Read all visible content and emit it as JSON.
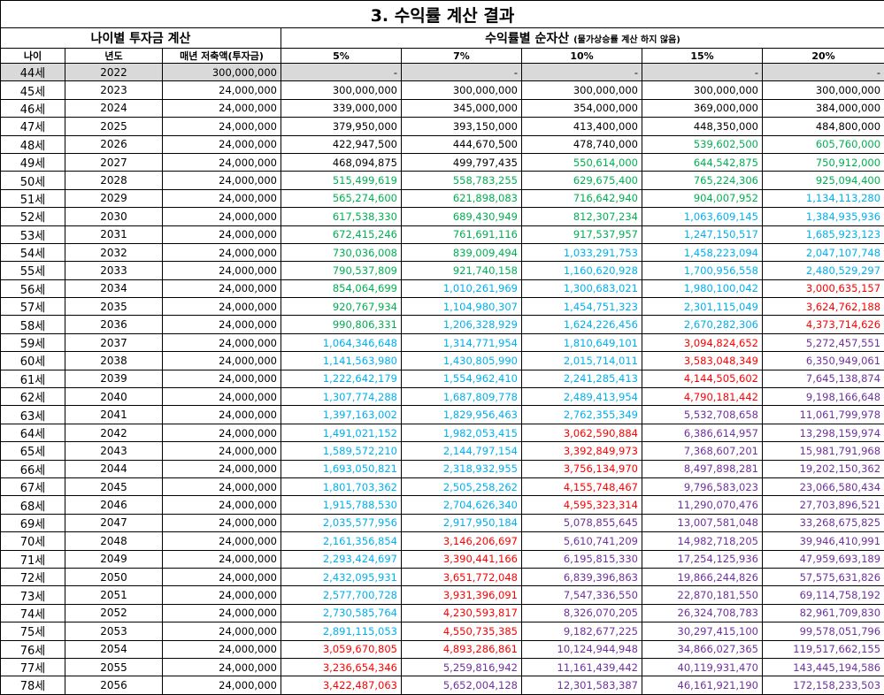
{
  "title": "3. 수익률 계산 결과",
  "left_header": "나이별 투자금 계산",
  "right_header": "수익률별 순자산",
  "right_header_note": "(물가상승률 계산 하지 않음)",
  "columns": [
    "나이",
    "년도",
    "매년 저축액(투자금)",
    "5%",
    "7%",
    "10%",
    "15%",
    "20%"
  ],
  "colors": {
    "black": "#000000",
    "green": "#00b050",
    "cyan": "#00b0f0",
    "red": "#ff0000",
    "purple": "#7030a0"
  },
  "rows": [
    {
      "age": "44세",
      "year": "2022",
      "save": "300,000,000",
      "vals": [
        "-",
        "-",
        "-",
        "-",
        "-"
      ],
      "colors": [
        "k",
        "k",
        "k",
        "k",
        "k"
      ]
    },
    {
      "age": "45세",
      "year": "2023",
      "save": "24,000,000",
      "vals": [
        "300,000,000",
        "300,000,000",
        "300,000,000",
        "300,000,000",
        "300,000,000"
      ],
      "colors": [
        "k",
        "k",
        "k",
        "k",
        "k"
      ]
    },
    {
      "age": "46세",
      "year": "2024",
      "save": "24,000,000",
      "vals": [
        "339,000,000",
        "345,000,000",
        "354,000,000",
        "369,000,000",
        "384,000,000"
      ],
      "colors": [
        "k",
        "k",
        "k",
        "k",
        "k"
      ]
    },
    {
      "age": "47세",
      "year": "2025",
      "save": "24,000,000",
      "vals": [
        "379,950,000",
        "393,150,000",
        "413,400,000",
        "448,350,000",
        "484,800,000"
      ],
      "colors": [
        "k",
        "k",
        "k",
        "k",
        "k"
      ]
    },
    {
      "age": "48세",
      "year": "2026",
      "save": "24,000,000",
      "vals": [
        "422,947,500",
        "444,670,500",
        "478,740,000",
        "539,602,500",
        "605,760,000"
      ],
      "colors": [
        "k",
        "k",
        "k",
        "g",
        "g"
      ]
    },
    {
      "age": "49세",
      "year": "2027",
      "save": "24,000,000",
      "vals": [
        "468,094,875",
        "499,797,435",
        "550,614,000",
        "644,542,875",
        "750,912,000"
      ],
      "colors": [
        "k",
        "k",
        "g",
        "g",
        "g"
      ]
    },
    {
      "age": "50세",
      "year": "2028",
      "save": "24,000,000",
      "vals": [
        "515,499,619",
        "558,783,255",
        "629,675,400",
        "765,224,306",
        "925,094,400"
      ],
      "colors": [
        "g",
        "g",
        "g",
        "g",
        "g"
      ]
    },
    {
      "age": "51세",
      "year": "2029",
      "save": "24,000,000",
      "vals": [
        "565,274,600",
        "621,898,083",
        "716,642,940",
        "904,007,952",
        "1,134,113,280"
      ],
      "colors": [
        "g",
        "g",
        "g",
        "g",
        "c"
      ]
    },
    {
      "age": "52세",
      "year": "2030",
      "save": "24,000,000",
      "vals": [
        "617,538,330",
        "689,430,949",
        "812,307,234",
        "1,063,609,145",
        "1,384,935,936"
      ],
      "colors": [
        "g",
        "g",
        "g",
        "c",
        "c"
      ]
    },
    {
      "age": "53세",
      "year": "2031",
      "save": "24,000,000",
      "vals": [
        "672,415,246",
        "761,691,116",
        "917,537,957",
        "1,247,150,517",
        "1,685,923,123"
      ],
      "colors": [
        "g",
        "g",
        "g",
        "c",
        "c"
      ]
    },
    {
      "age": "54세",
      "year": "2032",
      "save": "24,000,000",
      "vals": [
        "730,036,008",
        "839,009,494",
        "1,033,291,753",
        "1,458,223,094",
        "2,047,107,748"
      ],
      "colors": [
        "g",
        "g",
        "c",
        "c",
        "c"
      ]
    },
    {
      "age": "55세",
      "year": "2033",
      "save": "24,000,000",
      "vals": [
        "790,537,809",
        "921,740,158",
        "1,160,620,928",
        "1,700,956,558",
        "2,480,529,297"
      ],
      "colors": [
        "g",
        "g",
        "c",
        "c",
        "c"
      ]
    },
    {
      "age": "56세",
      "year": "2034",
      "save": "24,000,000",
      "vals": [
        "854,064,699",
        "1,010,261,969",
        "1,300,683,021",
        "1,980,100,042",
        "3,000,635,157"
      ],
      "colors": [
        "g",
        "c",
        "c",
        "c",
        "r"
      ]
    },
    {
      "age": "57세",
      "year": "2035",
      "save": "24,000,000",
      "vals": [
        "920,767,934",
        "1,104,980,307",
        "1,454,751,323",
        "2,301,115,049",
        "3,624,762,188"
      ],
      "colors": [
        "g",
        "c",
        "c",
        "c",
        "r"
      ]
    },
    {
      "age": "58세",
      "year": "2036",
      "save": "24,000,000",
      "vals": [
        "990,806,331",
        "1,206,328,929",
        "1,624,226,456",
        "2,670,282,306",
        "4,373,714,626"
      ],
      "colors": [
        "g",
        "c",
        "c",
        "c",
        "r"
      ]
    },
    {
      "age": "59세",
      "year": "2037",
      "save": "24,000,000",
      "vals": [
        "1,064,346,648",
        "1,314,771,954",
        "1,810,649,101",
        "3,094,824,652",
        "5,272,457,551"
      ],
      "colors": [
        "c",
        "c",
        "c",
        "r",
        "p"
      ]
    },
    {
      "age": "60세",
      "year": "2038",
      "save": "24,000,000",
      "vals": [
        "1,141,563,980",
        "1,430,805,990",
        "2,015,714,011",
        "3,583,048,349",
        "6,350,949,061"
      ],
      "colors": [
        "c",
        "c",
        "c",
        "r",
        "p"
      ]
    },
    {
      "age": "61세",
      "year": "2039",
      "save": "24,000,000",
      "vals": [
        "1,222,642,179",
        "1,554,962,410",
        "2,241,285,413",
        "4,144,505,602",
        "7,645,138,874"
      ],
      "colors": [
        "c",
        "c",
        "c",
        "r",
        "p"
      ]
    },
    {
      "age": "62세",
      "year": "2040",
      "save": "24,000,000",
      "vals": [
        "1,307,774,288",
        "1,687,809,778",
        "2,489,413,954",
        "4,790,181,442",
        "9,198,166,648"
      ],
      "colors": [
        "c",
        "c",
        "c",
        "r",
        "p"
      ]
    },
    {
      "age": "63세",
      "year": "2041",
      "save": "24,000,000",
      "vals": [
        "1,397,163,002",
        "1,829,956,463",
        "2,762,355,349",
        "5,532,708,658",
        "11,061,799,978"
      ],
      "colors": [
        "c",
        "c",
        "c",
        "p",
        "p"
      ]
    },
    {
      "age": "64세",
      "year": "2042",
      "save": "24,000,000",
      "vals": [
        "1,491,021,152",
        "1,982,053,415",
        "3,062,590,884",
        "6,386,614,957",
        "13,298,159,974"
      ],
      "colors": [
        "c",
        "c",
        "r",
        "p",
        "p"
      ]
    },
    {
      "age": "65세",
      "year": "2043",
      "save": "24,000,000",
      "vals": [
        "1,589,572,210",
        "2,144,797,154",
        "3,392,849,973",
        "7,368,607,201",
        "15,981,791,968"
      ],
      "colors": [
        "c",
        "c",
        "r",
        "p",
        "p"
      ]
    },
    {
      "age": "66세",
      "year": "2044",
      "save": "24,000,000",
      "vals": [
        "1,693,050,821",
        "2,318,932,955",
        "3,756,134,970",
        "8,497,898,281",
        "19,202,150,362"
      ],
      "colors": [
        "c",
        "c",
        "r",
        "p",
        "p"
      ]
    },
    {
      "age": "67세",
      "year": "2045",
      "save": "24,000,000",
      "vals": [
        "1,801,703,362",
        "2,505,258,262",
        "4,155,748,467",
        "9,796,583,023",
        "23,066,580,434"
      ],
      "colors": [
        "c",
        "c",
        "r",
        "p",
        "p"
      ]
    },
    {
      "age": "68세",
      "year": "2046",
      "save": "24,000,000",
      "vals": [
        "1,915,788,530",
        "2,704,626,340",
        "4,595,323,314",
        "11,290,070,476",
        "27,703,896,521"
      ],
      "colors": [
        "c",
        "c",
        "r",
        "p",
        "p"
      ]
    },
    {
      "age": "69세",
      "year": "2047",
      "save": "24,000,000",
      "vals": [
        "2,035,577,956",
        "2,917,950,184",
        "5,078,855,645",
        "13,007,581,048",
        "33,268,675,825"
      ],
      "colors": [
        "c",
        "c",
        "p",
        "p",
        "p"
      ]
    },
    {
      "age": "70세",
      "year": "2048",
      "save": "24,000,000",
      "vals": [
        "2,161,356,854",
        "3,146,206,697",
        "5,610,741,209",
        "14,982,718,205",
        "39,946,410,991"
      ],
      "colors": [
        "c",
        "r",
        "p",
        "p",
        "p"
      ]
    },
    {
      "age": "71세",
      "year": "2049",
      "save": "24,000,000",
      "vals": [
        "2,293,424,697",
        "3,390,441,166",
        "6,195,815,330",
        "17,254,125,936",
        "47,959,693,189"
      ],
      "colors": [
        "c",
        "r",
        "p",
        "p",
        "p"
      ]
    },
    {
      "age": "72세",
      "year": "2050",
      "save": "24,000,000",
      "vals": [
        "2,432,095,931",
        "3,651,772,048",
        "6,839,396,863",
        "19,866,244,826",
        "57,575,631,826"
      ],
      "colors": [
        "c",
        "r",
        "p",
        "p",
        "p"
      ]
    },
    {
      "age": "73세",
      "year": "2051",
      "save": "24,000,000",
      "vals": [
        "2,577,700,728",
        "3,931,396,091",
        "7,547,336,550",
        "22,870,181,550",
        "69,114,758,192"
      ],
      "colors": [
        "c",
        "r",
        "p",
        "p",
        "p"
      ]
    },
    {
      "age": "74세",
      "year": "2052",
      "save": "24,000,000",
      "vals": [
        "2,730,585,764",
        "4,230,593,817",
        "8,326,070,205",
        "26,324,708,783",
        "82,961,709,830"
      ],
      "colors": [
        "c",
        "r",
        "p",
        "p",
        "p"
      ]
    },
    {
      "age": "75세",
      "year": "2053",
      "save": "24,000,000",
      "vals": [
        "2,891,115,053",
        "4,550,735,385",
        "9,182,677,225",
        "30,297,415,100",
        "99,578,051,796"
      ],
      "colors": [
        "c",
        "r",
        "p",
        "p",
        "p"
      ]
    },
    {
      "age": "76세",
      "year": "2054",
      "save": "24,000,000",
      "vals": [
        "3,059,670,805",
        "4,893,286,861",
        "10,124,944,948",
        "34,866,027,365",
        "119,517,662,155"
      ],
      "colors": [
        "r",
        "r",
        "p",
        "p",
        "p"
      ]
    },
    {
      "age": "77세",
      "year": "2055",
      "save": "24,000,000",
      "vals": [
        "3,236,654,346",
        "5,259,816,942",
        "11,161,439,442",
        "40,119,931,470",
        "143,445,194,586"
      ],
      "colors": [
        "r",
        "p",
        "p",
        "p",
        "p"
      ]
    },
    {
      "age": "78세",
      "year": "2056",
      "save": "24,000,000",
      "vals": [
        "3,422,487,063",
        "5,652,004,128",
        "12,301,583,387",
        "46,161,921,190",
        "172,158,233,503"
      ],
      "colors": [
        "r",
        "p",
        "p",
        "p",
        "p"
      ]
    }
  ]
}
